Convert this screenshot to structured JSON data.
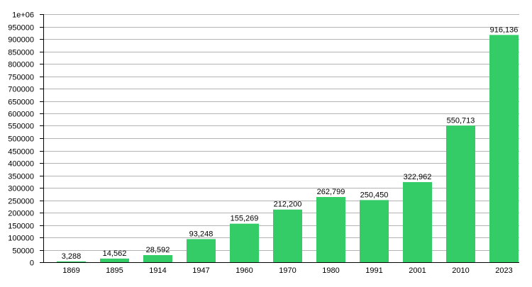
{
  "chart_data": {
    "type": "bar",
    "title": "",
    "xlabel": "",
    "ylabel": "",
    "categories": [
      "1869",
      "1895",
      "1914",
      "1947",
      "1960",
      "1970",
      "1980",
      "1991",
      "2001",
      "2010",
      "2023"
    ],
    "values": [
      3288,
      14562,
      28592,
      93248,
      155269,
      212200,
      262799,
      250450,
      322962,
      550713,
      916136
    ],
    "value_labels": [
      "3,288",
      "14,562",
      "28,592",
      "93,248",
      "155,269",
      "212,200",
      "262,799",
      "250,450",
      "322,962",
      "550,713",
      "916,136"
    ],
    "ylim": [
      0,
      1000000
    ],
    "ytick_step": 50000,
    "yticks": [
      "0",
      "50000",
      "100000",
      "150000",
      "200000",
      "250000",
      "300000",
      "350000",
      "400000",
      "450000",
      "500000",
      "550000",
      "600000",
      "650000",
      "700000",
      "750000",
      "800000",
      "850000",
      "900000",
      "950000",
      "1e+06"
    ],
    "grid": "horizontal",
    "legend": "none",
    "bar_color": "#33cc66",
    "grid_color": "#b3b3b3"
  }
}
